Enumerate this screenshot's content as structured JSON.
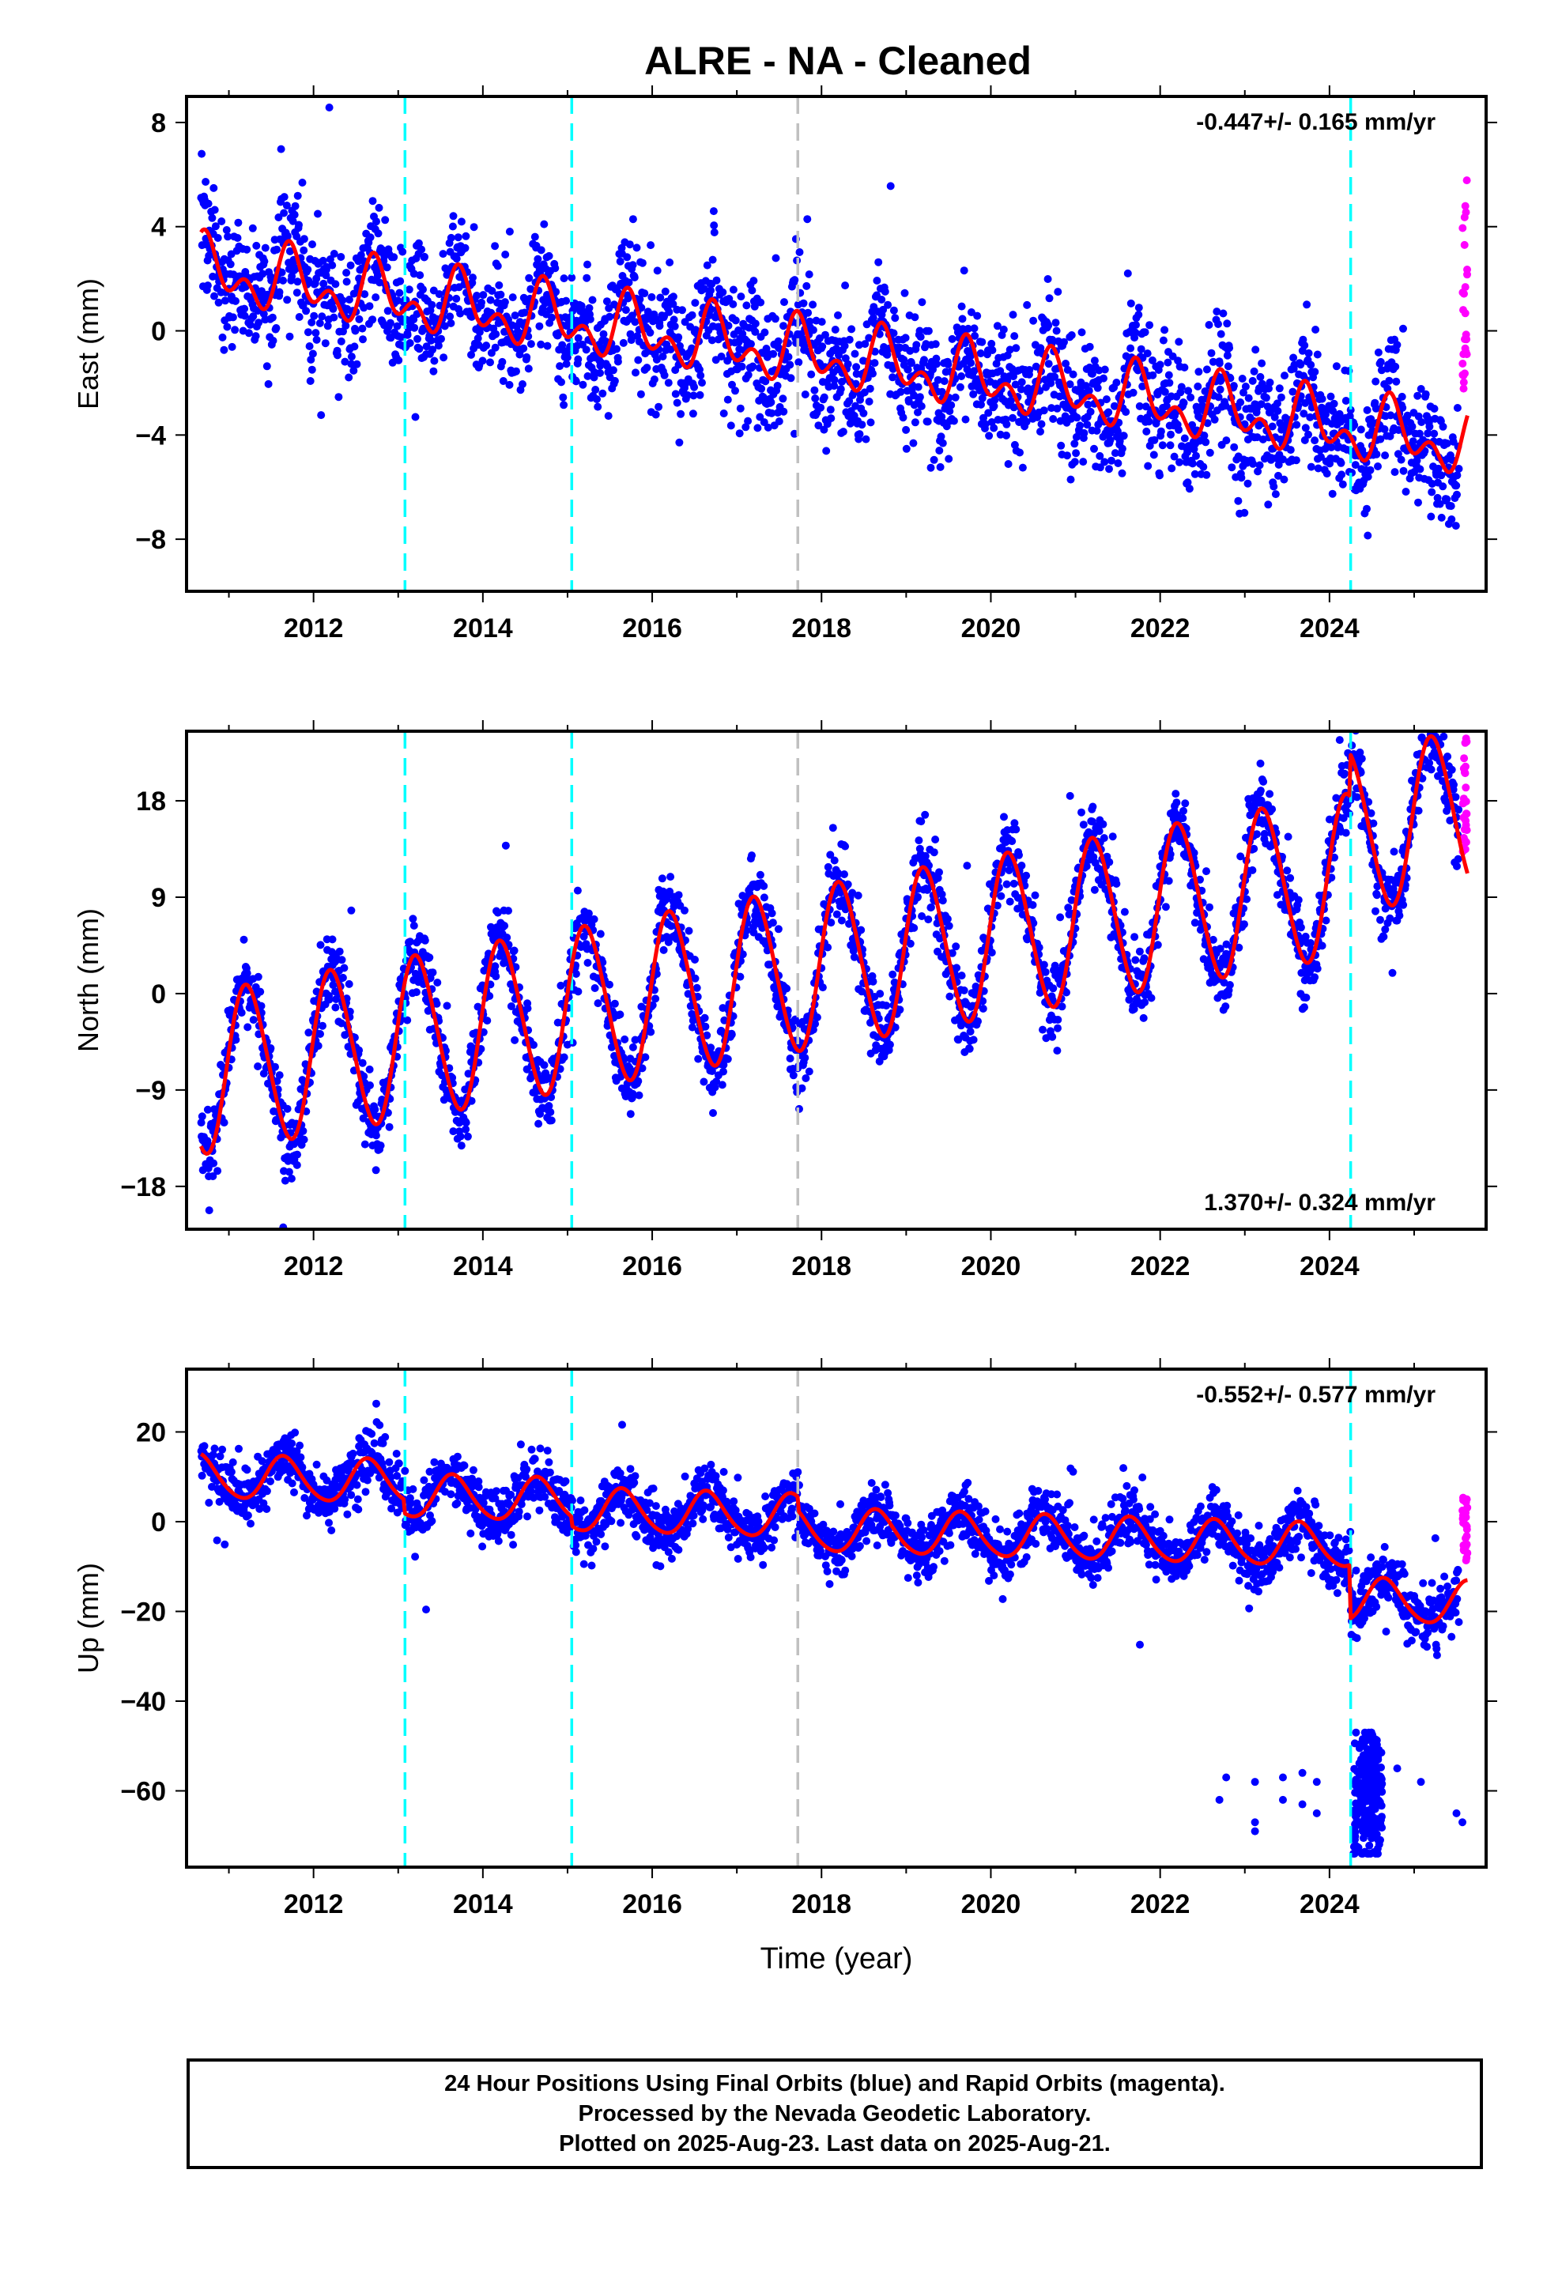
{
  "title": "ALRE  - NA - Cleaned",
  "caption": {
    "line1": "24 Hour Positions Using Final Orbits (blue) and Rapid Orbits (magenta).",
    "line2": "Processed by the Nevada Geodetic Laboratory.",
    "line3": "Plotted on 2025-Aug-23. Last data on 2025-Aug-21."
  },
  "colors": {
    "final_orbits": "#0000ff",
    "rapid_orbits": "#ff00ff",
    "model_fit": "#ff0000",
    "equipment_change": "#00ffff",
    "other_event": "#c0c0c0"
  },
  "chart_data": [
    {
      "type": "scatter",
      "ylabel": "East (mm)",
      "xlabel": "",
      "rate_label": "-0.447+/- 0.165 mm/yr",
      "rate_position": "top-right",
      "xlim": [
        2010.5,
        2025.85
      ],
      "ylim": [
        -10,
        9
      ],
      "x_ticks": [
        2012,
        2014,
        2016,
        2018,
        2020,
        2022,
        2024
      ],
      "y_ticks": [
        -8,
        -4,
        0,
        4,
        8
      ],
      "start": 2010.67,
      "end": 2025.63,
      "model": {
        "offset": 2.3,
        "rate": -0.447,
        "annual_amp": 0.9,
        "annual_phase": 0.75,
        "semiannual_amp": 0.75,
        "semiannual_phase": 0.2,
        "noise": 1.2,
        "steps": []
      },
      "events_cyan": [
        2013.08,
        2015.05,
        2024.25
      ],
      "events_gray": [
        2017.72
      ],
      "rapid_range": [
        -3.5,
        6.5
      ],
      "outliers": []
    },
    {
      "type": "scatter",
      "ylabel": "North (mm)",
      "xlabel": "",
      "rate_label": "1.370+/- 0.324 mm/yr",
      "rate_position": "bottom-right",
      "xlim": [
        2010.5,
        2025.85
      ],
      "ylim": [
        -22,
        24.5
      ],
      "x_ticks": [
        2012,
        2014,
        2016,
        2018,
        2020,
        2022,
        2024
      ],
      "y_ticks": [
        -18,
        -9,
        0,
        9,
        18
      ],
      "start": 2010.67,
      "end": 2025.63,
      "model": {
        "offset": -7.5,
        "rate": 1.37,
        "annual_amp": 7.5,
        "annual_phase": 0.22,
        "semiannual_amp": 0.6,
        "semiannual_phase": 0.1,
        "noise": 1.8,
        "steps": [
          [
            2024.25,
            4.0
          ]
        ]
      },
      "events_cyan": [
        2013.08,
        2015.05,
        2024.25
      ],
      "events_gray": [
        2017.72
      ],
      "rapid_range": [
        13,
        24
      ],
      "outliers": []
    },
    {
      "type": "scatter",
      "ylabel": "Up (mm)",
      "xlabel": "Time (year)",
      "rate_label": "-0.552+/- 0.577 mm/yr",
      "rate_position": "top-right",
      "xlim": [
        2010.5,
        2025.85
      ],
      "ylim": [
        -77,
        34
      ],
      "x_ticks": [
        2012,
        2014,
        2016,
        2018,
        2020,
        2022,
        2024
      ],
      "y_ticks": [
        -60,
        -40,
        -20,
        0,
        20
      ],
      "start": 2010.67,
      "end": 2025.63,
      "model": {
        "offset": 10,
        "rate": -0.552,
        "annual_amp": 4.8,
        "annual_phase": 0.65,
        "semiannual_amp": 0.5,
        "semiannual_phase": 0.1,
        "noise": 3.2,
        "steps": [
          [
            2013.08,
            -3.0
          ],
          [
            2015.05,
            -2.0
          ],
          [
            2017.72,
            -3.0
          ],
          [
            2024.25,
            -12.0
          ]
        ]
      },
      "events_cyan": [
        2013.08,
        2015.05,
        2024.25
      ],
      "events_gray": [
        2017.72
      ],
      "rapid_range": [
        -9,
        6
      ],
      "outliers": [
        {
          "x": 2022.78,
          "y": -57
        },
        {
          "x": 2022.7,
          "y": -62
        },
        {
          "x": 2023.12,
          "y": -58
        },
        {
          "x": 2023.12,
          "y": -67
        },
        {
          "x": 2023.12,
          "y": -69
        },
        {
          "x": 2023.45,
          "y": -57
        },
        {
          "x": 2023.45,
          "y": -62
        },
        {
          "x": 2023.68,
          "y": -56
        },
        {
          "x": 2023.68,
          "y": -63
        },
        {
          "x": 2023.85,
          "y": -58
        },
        {
          "x": 2023.85,
          "y": -65
        },
        {
          "x": 2024.8,
          "y": -55
        },
        {
          "x": 2025.08,
          "y": -58
        },
        {
          "x": 2025.5,
          "y": -65
        },
        {
          "x": 2025.57,
          "y": -67
        }
      ],
      "cluster": {
        "x_from": 2024.28,
        "x_to": 2024.62,
        "y_from": -74,
        "y_to": -47,
        "count": 240
      }
    }
  ]
}
